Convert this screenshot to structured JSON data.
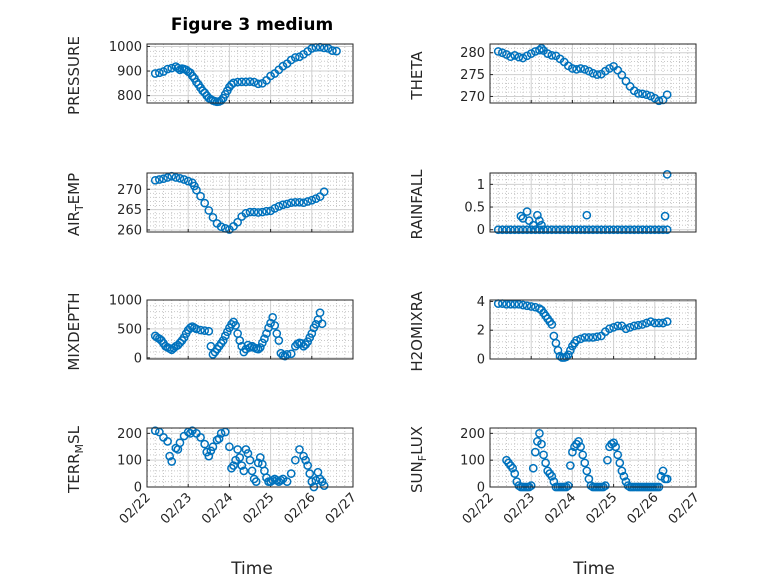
{
  "figure": {
    "title": "Figure 3 medium",
    "xlabel": "Time"
  },
  "x_ticks": [
    "02/22",
    "02/23",
    "02/24",
    "02/25",
    "02/26",
    "02/27"
  ],
  "colors": {
    "marker": "#0072bd",
    "axis": "#262626"
  },
  "chart_data": [
    {
      "type": "scatter",
      "name": "pressure",
      "ylabel": "PRESSURE",
      "ylim": [
        770,
        1010
      ],
      "yticks": [
        "800",
        "900",
        "1000"
      ],
      "ytick_values": [
        800,
        900,
        1000
      ],
      "xlim": [
        0,
        5
      ],
      "x": [
        0.2,
        0.3,
        0.4,
        0.5,
        0.6,
        0.7,
        0.75,
        0.8,
        0.85,
        0.9,
        0.95,
        1.0,
        1.05,
        1.1,
        1.15,
        1.2,
        1.25,
        1.3,
        1.35,
        1.4,
        1.45,
        1.5,
        1.55,
        1.6,
        1.65,
        1.7,
        1.75,
        1.8,
        1.85,
        1.9,
        1.95,
        2.0,
        2.05,
        2.1,
        2.2,
        2.3,
        2.4,
        2.5,
        2.6,
        2.7,
        2.8,
        2.9,
        3.0,
        3.1,
        3.2,
        3.3,
        3.4,
        3.5,
        3.6,
        3.7,
        3.8,
        3.9,
        4.0,
        4.1,
        4.2,
        4.3,
        4.4,
        4.5,
        4.6
      ],
      "values": [
        890,
        893,
        898,
        908,
        912,
        918,
        912,
        905,
        910,
        908,
        905,
        898,
        893,
        880,
        870,
        855,
        845,
        832,
        820,
        812,
        800,
        790,
        785,
        780,
        777,
        775,
        776,
        780,
        790,
        805,
        820,
        835,
        845,
        852,
        855,
        856,
        856,
        857,
        855,
        848,
        850,
        862,
        880,
        890,
        905,
        920,
        930,
        945,
        955,
        958,
        968,
        980,
        992,
        996,
        997,
        994,
        992,
        983,
        981
      ]
    },
    {
      "type": "scatter",
      "name": "theta",
      "ylabel": "THETA",
      "ylim": [
        268.5,
        282
      ],
      "yticks": [
        "270",
        "275",
        "280"
      ],
      "ytick_values": [
        270,
        275,
        280
      ],
      "xlim": [
        0,
        5
      ],
      "x": [
        0.2,
        0.3,
        0.4,
        0.5,
        0.6,
        0.7,
        0.8,
        0.9,
        1.0,
        1.1,
        1.2,
        1.25,
        1.3,
        1.4,
        1.5,
        1.6,
        1.7,
        1.8,
        1.9,
        2.0,
        2.1,
        2.2,
        2.3,
        2.4,
        2.5,
        2.6,
        2.7,
        2.8,
        2.9,
        3.0,
        3.1,
        3.2,
        3.3,
        3.4,
        3.5,
        3.6,
        3.7,
        3.8,
        3.9,
        4.0,
        4.1,
        4.2,
        4.3
      ],
      "values": [
        280.3,
        280.0,
        279.6,
        279.1,
        279.4,
        279.0,
        278.8,
        279.3,
        279.8,
        280.3,
        280.6,
        281.0,
        280.5,
        279.8,
        279.4,
        279.3,
        278.6,
        277.9,
        277.0,
        276.4,
        276.2,
        276.4,
        276.2,
        275.8,
        275.3,
        275.0,
        275.1,
        275.8,
        276.4,
        276.9,
        276.0,
        274.9,
        273.5,
        272.3,
        271.3,
        270.7,
        270.6,
        270.4,
        270.1,
        269.6,
        269.0,
        269.2,
        270.4
      ]
    },
    {
      "type": "scatter",
      "name": "air_temp",
      "ylabel": "AIR_TEMP",
      "ylim": [
        259.5,
        274
      ],
      "yticks": [
        "260",
        "265",
        "270"
      ],
      "ytick_values": [
        260,
        265,
        270
      ],
      "xlim": [
        0,
        5
      ],
      "x": [
        0.2,
        0.3,
        0.4,
        0.5,
        0.6,
        0.7,
        0.8,
        0.9,
        1.0,
        1.1,
        1.15,
        1.2,
        1.3,
        1.4,
        1.5,
        1.6,
        1.7,
        1.8,
        1.9,
        2.0,
        2.1,
        2.2,
        2.3,
        2.4,
        2.5,
        2.6,
        2.7,
        2.8,
        2.9,
        3.0,
        3.1,
        3.2,
        3.3,
        3.4,
        3.5,
        3.6,
        3.7,
        3.8,
        3.9,
        4.0,
        4.1,
        4.2,
        4.3
      ],
      "values": [
        272.2,
        272.4,
        272.6,
        272.9,
        273.2,
        272.9,
        272.7,
        272.4,
        272.0,
        271.6,
        270.8,
        269.8,
        268.3,
        266.6,
        264.8,
        263.1,
        261.6,
        260.8,
        260.4,
        260.1,
        260.9,
        261.9,
        263.3,
        264.1,
        264.4,
        264.4,
        264.3,
        264.4,
        264.6,
        264.7,
        265.3,
        265.8,
        266.2,
        266.4,
        266.7,
        266.8,
        266.8,
        266.7,
        267.0,
        267.3,
        267.7,
        268.2,
        269.4
      ]
    },
    {
      "type": "scatter",
      "name": "rainfall",
      "ylabel": "RAINFALL",
      "ylim": [
        -0.05,
        1.25
      ],
      "yticks": [
        "0",
        "0.5",
        "1"
      ],
      "ytick_values": [
        0,
        0.5,
        1
      ],
      "xlim": [
        0,
        5
      ],
      "x": [
        0.2,
        0.3,
        0.4,
        0.5,
        0.6,
        0.7,
        0.8,
        0.9,
        1.0,
        1.1,
        1.2,
        1.3,
        1.4,
        1.5,
        1.6,
        1.7,
        1.8,
        1.9,
        2.0,
        2.1,
        2.2,
        2.3,
        2.4,
        2.5,
        2.6,
        2.7,
        2.8,
        2.9,
        3.0,
        3.1,
        3.2,
        3.3,
        3.4,
        3.5,
        3.6,
        3.7,
        3.8,
        3.9,
        4.0,
        4.1,
        4.2,
        4.3,
        0.75,
        0.8,
        0.9,
        0.95,
        1.05,
        1.15,
        1.2,
        1.25,
        2.35,
        4.25,
        4.3
      ],
      "values": [
        0,
        0,
        0,
        0,
        0,
        0,
        0,
        0,
        0,
        0,
        0,
        0,
        0,
        0,
        0,
        0,
        0,
        0,
        0,
        0,
        0,
        0,
        0,
        0,
        0,
        0,
        0,
        0,
        0,
        0,
        0,
        0,
        0,
        0,
        0,
        0,
        0,
        0,
        0,
        0,
        0,
        0,
        0.3,
        0.25,
        0.4,
        0.2,
        0.1,
        0.32,
        0.2,
        0.1,
        0.32,
        0.3,
        1.22
      ]
    },
    {
      "type": "scatter",
      "name": "mixdepth",
      "ylabel": "MIXDEPTH",
      "ylim": [
        -20,
        1000
      ],
      "yticks": [
        "0",
        "500",
        "1000"
      ],
      "ytick_values": [
        0,
        500,
        1000
      ],
      "xlim": [
        0,
        5
      ],
      "x": [
        0.2,
        0.25,
        0.3,
        0.35,
        0.4,
        0.45,
        0.5,
        0.55,
        0.6,
        0.65,
        0.7,
        0.75,
        0.8,
        0.85,
        0.9,
        0.95,
        1.0,
        1.05,
        1.1,
        1.15,
        1.2,
        1.3,
        1.4,
        1.5,
        1.55,
        1.6,
        1.65,
        1.7,
        1.75,
        1.8,
        1.85,
        1.9,
        1.95,
        2.0,
        2.05,
        2.1,
        2.15,
        2.2,
        2.25,
        2.3,
        2.35,
        2.4,
        2.45,
        2.5,
        2.55,
        2.6,
        2.65,
        2.7,
        2.75,
        2.8,
        2.85,
        2.9,
        2.95,
        3.0,
        3.05,
        3.1,
        3.15,
        3.2,
        3.25,
        3.3,
        3.35,
        3.4,
        3.5,
        3.6,
        3.65,
        3.7,
        3.75,
        3.8,
        3.85,
        3.9,
        3.95,
        4.0,
        4.05,
        4.1,
        4.15,
        4.2,
        4.25
      ],
      "values": [
        380,
        350,
        330,
        300,
        250,
        200,
        180,
        160,
        140,
        170,
        200,
        220,
        260,
        300,
        350,
        420,
        480,
        520,
        540,
        520,
        500,
        480,
        470,
        460,
        200,
        60,
        100,
        150,
        200,
        250,
        300,
        380,
        450,
        520,
        580,
        620,
        560,
        420,
        300,
        200,
        100,
        150,
        220,
        180,
        200,
        180,
        160,
        150,
        180,
        260,
        330,
        420,
        520,
        600,
        700,
        560,
        420,
        300,
        80,
        40,
        30,
        60,
        70,
        200,
        240,
        260,
        250,
        200,
        230,
        280,
        350,
        420,
        520,
        580,
        660,
        780,
        590
      ]
    },
    {
      "type": "scatter",
      "name": "h2omixra",
      "ylabel": "H2OMIXRA",
      "ylim": [
        0,
        4.1
      ],
      "yticks": [
        "0",
        "2",
        "4"
      ],
      "ytick_values": [
        0,
        2,
        4
      ],
      "xlim": [
        0,
        5
      ],
      "x": [
        0.2,
        0.3,
        0.4,
        0.5,
        0.6,
        0.7,
        0.8,
        0.9,
        1.0,
        1.1,
        1.2,
        1.25,
        1.3,
        1.35,
        1.4,
        1.45,
        1.5,
        1.55,
        1.6,
        1.65,
        1.7,
        1.75,
        1.8,
        1.85,
        1.9,
        1.95,
        2.0,
        2.05,
        2.1,
        2.2,
        2.3,
        2.4,
        2.5,
        2.6,
        2.7,
        2.8,
        2.9,
        3.0,
        3.1,
        3.2,
        3.3,
        3.4,
        3.5,
        3.6,
        3.7,
        3.8,
        3.9,
        4.0,
        4.1,
        4.2,
        4.3
      ],
      "values": [
        3.85,
        3.85,
        3.8,
        3.8,
        3.8,
        3.8,
        3.75,
        3.7,
        3.65,
        3.6,
        3.5,
        3.4,
        3.2,
        3.0,
        2.8,
        2.6,
        2.4,
        1.6,
        1.1,
        0.6,
        0.2,
        0.1,
        0.1,
        0.15,
        0.3,
        0.6,
        0.9,
        1.1,
        1.3,
        1.4,
        1.5,
        1.5,
        1.5,
        1.55,
        1.6,
        1.9,
        2.1,
        2.2,
        2.3,
        2.3,
        2.1,
        2.2,
        2.3,
        2.35,
        2.4,
        2.5,
        2.6,
        2.5,
        2.5,
        2.5,
        2.6
      ]
    },
    {
      "type": "scatter",
      "name": "terr_msl",
      "ylabel": "TERR_MSL",
      "ylim": [
        0,
        220
      ],
      "yticks": [
        "0",
        "100",
        "200"
      ],
      "ytick_values": [
        0,
        100,
        200
      ],
      "xlim": [
        0,
        5
      ],
      "x": [
        0.2,
        0.3,
        0.4,
        0.5,
        0.55,
        0.6,
        0.7,
        0.75,
        0.8,
        0.9,
        1.0,
        1.05,
        1.1,
        1.2,
        1.3,
        1.4,
        1.45,
        1.5,
        1.55,
        1.6,
        1.7,
        1.75,
        1.8,
        1.9,
        2.0,
        2.05,
        2.1,
        2.15,
        2.2,
        2.25,
        2.3,
        2.35,
        2.4,
        2.45,
        2.5,
        2.55,
        2.6,
        2.65,
        2.7,
        2.75,
        2.8,
        2.85,
        2.9,
        2.95,
        3.0,
        3.05,
        3.1,
        3.15,
        3.2,
        3.25,
        3.3,
        3.4,
        3.5,
        3.6,
        3.7,
        3.8,
        3.85,
        3.9,
        3.95,
        4.0,
        4.05,
        4.1,
        4.15,
        4.2,
        4.25,
        4.3
      ],
      "values": [
        210,
        205,
        185,
        170,
        115,
        95,
        145,
        140,
        165,
        190,
        205,
        200,
        210,
        200,
        185,
        160,
        130,
        115,
        135,
        150,
        175,
        180,
        200,
        205,
        150,
        70,
        80,
        100,
        140,
        110,
        80,
        60,
        140,
        125,
        100,
        60,
        30,
        20,
        90,
        110,
        85,
        60,
        35,
        20,
        20,
        25,
        30,
        25,
        20,
        25,
        30,
        20,
        50,
        100,
        140,
        115,
        100,
        80,
        50,
        20,
        0,
        25,
        55,
        30,
        20,
        5
      ]
    },
    {
      "type": "scatter",
      "name": "sun_flux",
      "ylabel": "SUN_FLUX",
      "ylim": [
        0,
        220
      ],
      "yticks": [
        "0",
        "100",
        "200"
      ],
      "ytick_values": [
        0,
        100,
        200
      ],
      "xlim": [
        0,
        5
      ],
      "x": [
        0.4,
        0.45,
        0.5,
        0.55,
        0.6,
        0.65,
        0.7,
        0.75,
        0.8,
        0.85,
        0.9,
        0.95,
        1.0,
        1.05,
        1.1,
        1.15,
        1.2,
        1.25,
        1.3,
        1.35,
        1.4,
        1.45,
        1.5,
        1.55,
        1.6,
        1.65,
        1.7,
        1.75,
        1.8,
        1.85,
        1.9,
        1.95,
        2.0,
        2.05,
        2.1,
        2.15,
        2.2,
        2.25,
        2.3,
        2.35,
        2.4,
        2.45,
        2.5,
        2.55,
        2.6,
        2.65,
        2.7,
        2.75,
        2.8,
        2.85,
        2.9,
        2.95,
        3.0,
        3.05,
        3.1,
        3.15,
        3.2,
        3.25,
        3.3,
        3.35,
        3.4,
        3.45,
        3.5,
        3.55,
        3.6,
        3.65,
        3.7,
        3.75,
        3.8,
        3.85,
        3.9,
        3.95,
        4.0,
        4.05,
        4.1,
        4.15,
        4.2,
        4.25,
        4.3
      ],
      "values": [
        100,
        90,
        80,
        70,
        50,
        20,
        5,
        0,
        0,
        0,
        0,
        0,
        5,
        70,
        130,
        170,
        200,
        160,
        120,
        90,
        60,
        50,
        40,
        20,
        0,
        0,
        0,
        0,
        0,
        0,
        5,
        80,
        130,
        150,
        160,
        170,
        150,
        120,
        90,
        60,
        30,
        5,
        0,
        0,
        0,
        0,
        0,
        0,
        5,
        100,
        150,
        160,
        165,
        150,
        120,
        90,
        60,
        40,
        20,
        5,
        0,
        0,
        0,
        0,
        0,
        0,
        0,
        0,
        0,
        0,
        0,
        0,
        0,
        0,
        0,
        40,
        60,
        30,
        30
      ]
    }
  ]
}
